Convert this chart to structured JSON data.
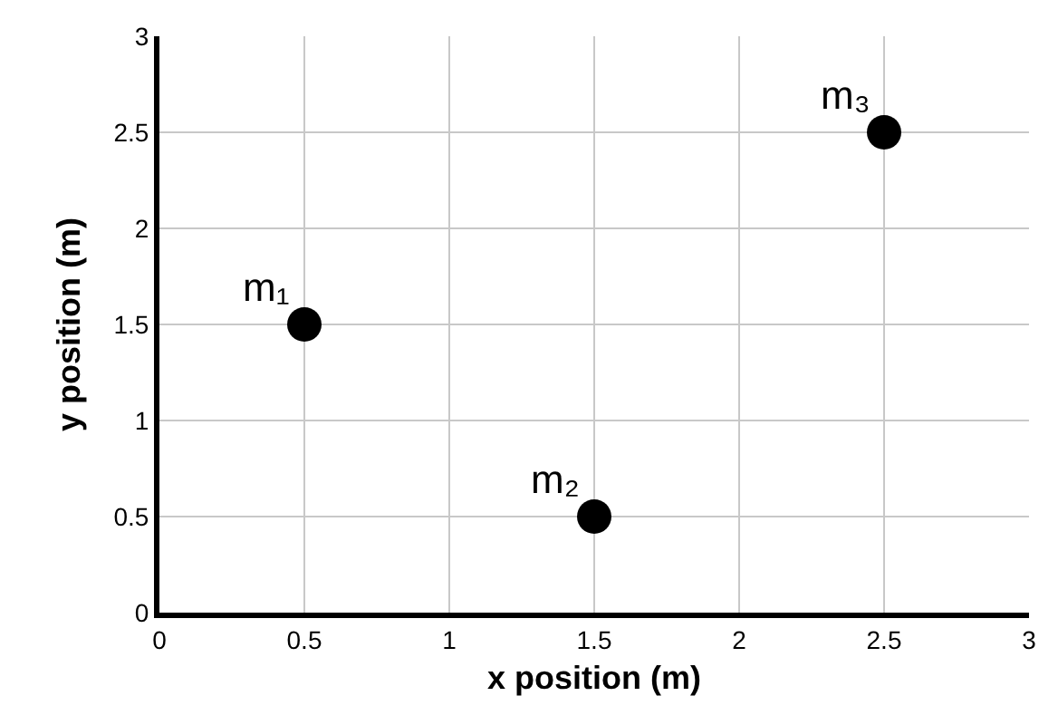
{
  "chart_data": {
    "type": "scatter",
    "xlabel": "x position (m)",
    "ylabel": "y position (m)",
    "x": [
      0.5,
      1.5,
      2.5
    ],
    "series": [
      {
        "color": "#000000",
        "values": [
          1.5,
          0.5,
          2.5
        ]
      }
    ],
    "marker": "circle",
    "grid": true,
    "xlim": [
      0,
      3
    ],
    "xticks": [
      0,
      0.5,
      1,
      1.5,
      2,
      2.5,
      3
    ],
    "ylim": [
      0,
      3
    ],
    "yticks": [
      0,
      0.5,
      1,
      1.5,
      2,
      2.5,
      3
    ],
    "annotations": [
      {
        "text": "m₁",
        "x": 0.5,
        "y": 1.5
      },
      {
        "text": "m₂",
        "x": 1.5,
        "y": 0.5
      },
      {
        "text": "m₃",
        "x": 2.5,
        "y": 2.5
      }
    ]
  }
}
